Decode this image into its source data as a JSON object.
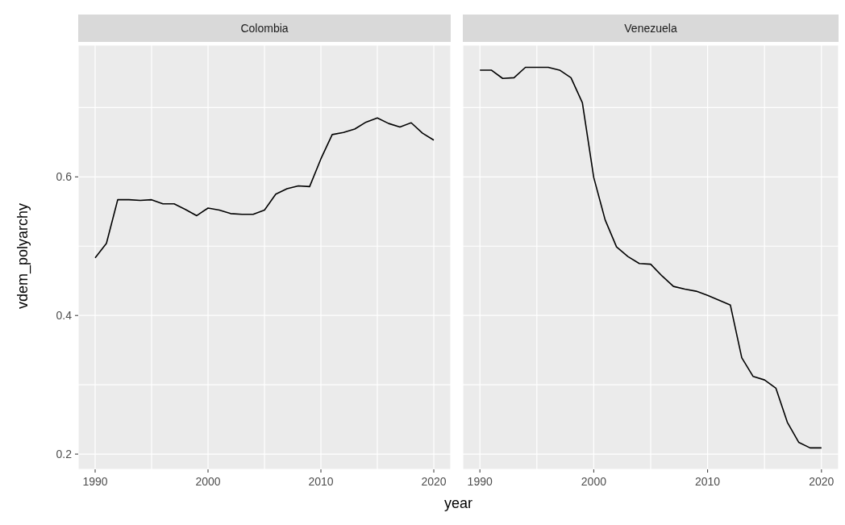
{
  "chart_data": [
    {
      "type": "line",
      "title": "Colombia",
      "xlabel": "year",
      "ylabel": "vdem_polyarchy",
      "x": [
        1990,
        1991,
        1992,
        1993,
        1994,
        1995,
        1996,
        1997,
        1998,
        1999,
        2000,
        2001,
        2002,
        2003,
        2004,
        2005,
        2006,
        2007,
        2008,
        2009,
        2010,
        2011,
        2012,
        2013,
        2014,
        2015,
        2016,
        2017,
        2018,
        2019,
        2020
      ],
      "series": [
        {
          "color": "#000000",
          "values": [
            0.483,
            0.504,
            0.567,
            0.567,
            0.566,
            0.567,
            0.561,
            0.561,
            0.553,
            0.544,
            0.555,
            0.552,
            0.547,
            0.546,
            0.546,
            0.552,
            0.575,
            0.583,
            0.587,
            0.586,
            0.626,
            0.661,
            0.664,
            0.669,
            0.679,
            0.685,
            0.677,
            0.672,
            0.678,
            0.663,
            0.653
          ]
        }
      ],
      "xlim": [
        1988.5,
        2021.5
      ],
      "xticks": [
        1990,
        {
          "value": 1995,
          "label": null
        },
        2000,
        {
          "value": 2005,
          "label": null
        },
        2010,
        {
          "value": 2015,
          "label": null
        },
        2020
      ],
      "ylim": [
        0.178,
        0.79
      ],
      "yticks": [
        0.2,
        {
          "value": 0.3,
          "label": null
        },
        0.4,
        {
          "value": 0.5,
          "label": null
        },
        0.6,
        {
          "value": 0.7,
          "label": null
        }
      ],
      "grid": true
    },
    {
      "type": "line",
      "title": "Venezuela",
      "x": [
        1990,
        1991,
        1992,
        1993,
        1994,
        1995,
        1996,
        1997,
        1998,
        1999,
        2000,
        2001,
        2002,
        2003,
        2004,
        2005,
        2006,
        2007,
        2008,
        2009,
        2010,
        2011,
        2012,
        2013,
        2014,
        2015,
        2016,
        2017,
        2018,
        2019,
        2020
      ],
      "series": [
        {
          "color": "#000000",
          "values": [
            0.754,
            0.754,
            0.742,
            0.743,
            0.758,
            0.758,
            0.758,
            0.754,
            0.743,
            0.707,
            0.599,
            0.538,
            0.499,
            0.485,
            0.475,
            0.474,
            0.457,
            0.442,
            0.438,
            0.435,
            0.429,
            0.422,
            0.415,
            0.339,
            0.312,
            0.307,
            0.295,
            0.246,
            0.217,
            0.209,
            0.209
          ]
        }
      ],
      "xlim": [
        1988.5,
        2021.5
      ],
      "xticks": [
        1990,
        {
          "value": 1995,
          "label": null
        },
        2000,
        {
          "value": 2005,
          "label": null
        },
        2010,
        {
          "value": 2015,
          "label": null
        },
        2020
      ],
      "ylim": [
        0.178,
        0.79
      ],
      "yticks": [
        0.2,
        {
          "value": 0.3,
          "label": null
        },
        0.4,
        {
          "value": 0.5,
          "label": null
        },
        0.6,
        {
          "value": 0.7,
          "label": null
        }
      ],
      "grid": true,
      "tick_labels": "x"
    }
  ]
}
